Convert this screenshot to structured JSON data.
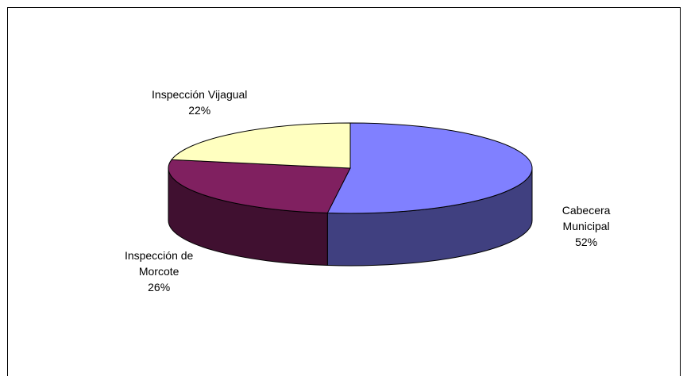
{
  "chart_data": {
    "type": "pie3d",
    "categories": [
      "Cabecera Municipal",
      "Inspección de Morcote",
      "Inspección Vijagual"
    ],
    "values": [
      52,
      26,
      22
    ],
    "value_labels": [
      "52%",
      "26%",
      "22%"
    ],
    "colors": [
      "#8080ff",
      "#802060",
      "#ffffc0"
    ]
  }
}
